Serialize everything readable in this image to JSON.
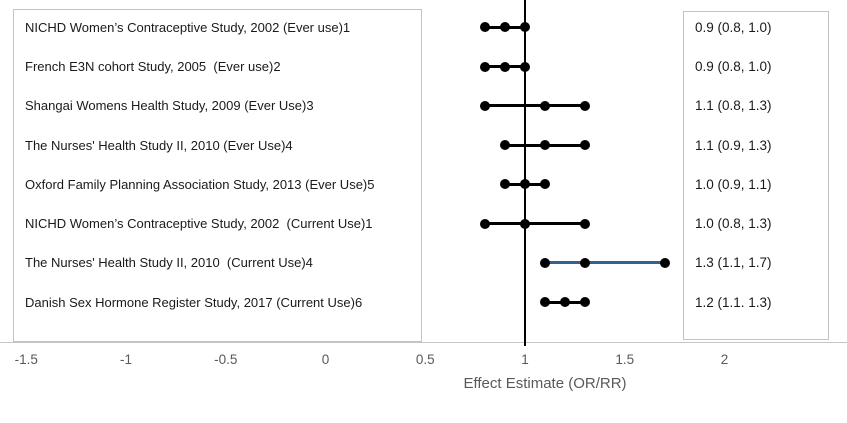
{
  "colors": {
    "marker": "#000000",
    "highlight_line": "#376092",
    "axis_line": "#c6c6c6",
    "box_border": "#c3c3c3",
    "tick_text": "#595959",
    "label_text": "#1a1a1a"
  },
  "chart_data": {
    "type": "scatter",
    "subtype": "forest-plot",
    "title": "",
    "xlabel": "Effect Estimate (OR/RR)",
    "ylabel": "",
    "xlim": [
      -1.5,
      2.6
    ],
    "grid": false,
    "reference_line_x": 1,
    "x_ticks": [
      "-1.5",
      "-1",
      "-0.5",
      "0",
      "0.5",
      "1",
      "1.5",
      "2"
    ],
    "studies": [
      {
        "label": "NICHD Women’s Contraceptive Study, 2002 (Ever use)1",
        "estimate": 0.9,
        "ci_low": 0.8,
        "ci_high": 1.0,
        "estimate_label": "0.9 (0.8, 1.0)",
        "highlight": false
      },
      {
        "label": "French E3N cohort Study, 2005  (Ever use)2",
        "estimate": 0.9,
        "ci_low": 0.8,
        "ci_high": 1.0,
        "estimate_label": "0.9 (0.8, 1.0)",
        "highlight": false
      },
      {
        "label": "Shangai Womens Health Study, 2009 (Ever Use)3",
        "estimate": 1.1,
        "ci_low": 0.8,
        "ci_high": 1.3,
        "estimate_label": "1.1 (0.8, 1.3)",
        "highlight": false
      },
      {
        "label": "The Nurses' Health Study II, 2010 (Ever Use)4",
        "estimate": 1.1,
        "ci_low": 0.9,
        "ci_high": 1.3,
        "estimate_label": "1.1 (0.9, 1.3)",
        "highlight": false
      },
      {
        "label": "Oxford Family Planning Association Study, 2013 (Ever Use)5",
        "estimate": 1.0,
        "ci_low": 0.9,
        "ci_high": 1.1,
        "estimate_label": "1.0 (0.9, 1.1)",
        "highlight": false
      },
      {
        "label": "NICHD Women’s Contraceptive Study, 2002  (Current Use)1",
        "estimate": 1.0,
        "ci_low": 0.8,
        "ci_high": 1.3,
        "estimate_label": "1.0 (0.8, 1.3)",
        "highlight": false
      },
      {
        "label": "The Nurses' Health Study II, 2010  (Current Use)4",
        "estimate": 1.3,
        "ci_low": 1.1,
        "ci_high": 1.7,
        "estimate_label": "1.3 (1.1, 1.7)",
        "highlight": true
      },
      {
        "label": "Danish Sex Hormone Register Study, 2017 (Current Use)6",
        "estimate": 1.2,
        "ci_low": 1.1,
        "ci_high": 1.3,
        "estimate_label": "1.2 (1.1. 1.3)",
        "highlight": false
      }
    ]
  }
}
